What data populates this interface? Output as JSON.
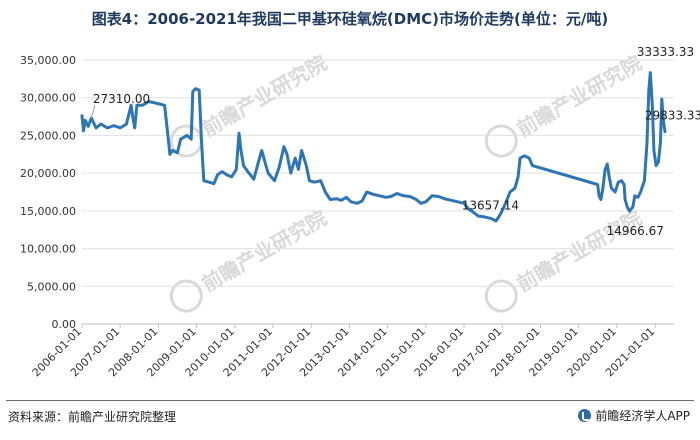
{
  "page": {
    "title": "图表4：2006-2021年我国二甲基环硅氧烷(DMC)市场价走势(单位：元/吨)",
    "source": "资料来源：前瞻产业研究院整理",
    "brand": "前瞻经济学人APP"
  },
  "chart_data": {
    "type": "line",
    "title": "图表4：2006-2021年我国二甲基环硅氧烷(DMC)市场价走势(单位：元/吨)",
    "xlabel": "",
    "ylabel": "",
    "ylim": [
      0,
      35000
    ],
    "yticks": [
      "0.00",
      "5,000.00",
      "10,000.00",
      "15,000.00",
      "20,000.00",
      "25,000.00",
      "30,000.00",
      "35,000.00"
    ],
    "xticks": [
      "2006-01-01",
      "2007-01-01",
      "2008-01-01",
      "2009-01-01",
      "2010-01-01",
      "2011-01-01",
      "2012-01-01",
      "2013-01-01",
      "2014-01-01",
      "2015-01-01",
      "2016-01-01",
      "2017-01-01",
      "2018-01-01",
      "2019-01-01",
      "2020-01-01",
      "2021-01-01"
    ],
    "xlim": [
      "2006-01-01",
      "2021-06-30"
    ],
    "grid": "horizontal",
    "line_color": "#2e75b6",
    "series": [
      {
        "points": [
          [
            "2006-01-01",
            27600
          ],
          [
            "2006-01-15",
            25600
          ],
          [
            "2006-02-01",
            27000
          ],
          [
            "2006-03-01",
            26200
          ],
          [
            "2006-04-01",
            27310
          ],
          [
            "2006-05-15",
            26000
          ],
          [
            "2006-07-01",
            26500
          ],
          [
            "2006-09-01",
            26000
          ],
          [
            "2006-11-01",
            26300
          ],
          [
            "2007-01-01",
            26000
          ],
          [
            "2007-03-01",
            26500
          ],
          [
            "2007-04-15",
            29000
          ],
          [
            "2007-05-01",
            27500
          ],
          [
            "2007-05-20",
            26000
          ],
          [
            "2007-06-10",
            29000
          ],
          [
            "2007-08-01",
            29000
          ],
          [
            "2007-10-01",
            29500
          ],
          [
            "2008-01-01",
            29200
          ],
          [
            "2008-03-01",
            29000
          ],
          [
            "2008-04-01",
            25000
          ],
          [
            "2008-04-20",
            22500
          ],
          [
            "2008-05-15",
            23000
          ],
          [
            "2008-07-01",
            22700
          ],
          [
            "2008-08-01",
            24500
          ],
          [
            "2008-10-01",
            25000
          ],
          [
            "2008-11-10",
            24500
          ],
          [
            "2008-11-25",
            30800
          ],
          [
            "2008-12-20",
            31200
          ],
          [
            "2009-01-25",
            31000
          ],
          [
            "2009-02-15",
            24500
          ],
          [
            "2009-03-10",
            19000
          ],
          [
            "2009-05-01",
            18800
          ],
          [
            "2009-06-15",
            18600
          ],
          [
            "2009-07-20",
            19800
          ],
          [
            "2009-09-01",
            20200
          ],
          [
            "2009-10-15",
            19800
          ],
          [
            "2009-12-01",
            19500
          ],
          [
            "2010-01-15",
            20500
          ],
          [
            "2010-02-10",
            25300
          ],
          [
            "2010-03-01",
            23000
          ],
          [
            "2010-03-25",
            21000
          ],
          [
            "2010-05-15",
            20000
          ],
          [
            "2010-07-01",
            19200
          ],
          [
            "2010-08-15",
            21500
          ],
          [
            "2010-09-15",
            23000
          ],
          [
            "2010-10-15",
            21500
          ],
          [
            "2010-11-15",
            20000
          ],
          [
            "2011-01-15",
            19000
          ],
          [
            "2011-03-01",
            20800
          ],
          [
            "2011-04-15",
            23500
          ],
          [
            "2011-05-15",
            22500
          ],
          [
            "2011-06-20",
            20000
          ],
          [
            "2011-08-01",
            22000
          ],
          [
            "2011-09-01",
            20500
          ],
          [
            "2011-10-01",
            23000
          ],
          [
            "2011-11-15",
            21000
          ],
          [
            "2011-12-15",
            19000
          ],
          [
            "2012-02-01",
            18800
          ],
          [
            "2012-04-01",
            19000
          ],
          [
            "2012-05-15",
            17500
          ],
          [
            "2012-07-01",
            16500
          ],
          [
            "2012-09-01",
            16600
          ],
          [
            "2012-10-15",
            16400
          ],
          [
            "2012-12-01",
            16800
          ],
          [
            "2013-01-15",
            16200
          ],
          [
            "2013-03-15",
            16000
          ],
          [
            "2013-05-01",
            16300
          ],
          [
            "2013-06-15",
            17500
          ],
          [
            "2013-08-15",
            17200
          ],
          [
            "2013-10-15",
            17000
          ],
          [
            "2013-12-15",
            16800
          ],
          [
            "2014-02-01",
            16900
          ],
          [
            "2014-04-01",
            17300
          ],
          [
            "2014-06-01",
            17000
          ],
          [
            "2014-08-01",
            16900
          ],
          [
            "2014-10-01",
            16500
          ],
          [
            "2014-11-15",
            16000
          ],
          [
            "2015-01-01",
            16200
          ],
          [
            "2015-03-01",
            17000
          ],
          [
            "2015-05-01",
            16900
          ],
          [
            "2015-07-01",
            16600
          ],
          [
            "2015-09-01",
            16400
          ],
          [
            "2015-11-01",
            16200
          ],
          [
            "2016-01-01",
            16000
          ],
          [
            "2016-02-15",
            15200
          ],
          [
            "2016-04-01",
            14800
          ],
          [
            "2016-05-15",
            14300
          ],
          [
            "2016-07-15",
            14200
          ],
          [
            "2016-09-15",
            14000
          ],
          [
            "2016-11-01",
            13657
          ],
          [
            "2016-12-15",
            14600
          ],
          [
            "2017-02-01",
            16000
          ],
          [
            "2017-03-15",
            17500
          ],
          [
            "2017-05-01",
            18000
          ],
          [
            "2017-06-01",
            19500
          ],
          [
            "2017-06-20",
            22000
          ],
          [
            "2017-08-01",
            22300
          ],
          [
            "2017-09-15",
            22000
          ],
          [
            "2017-10-15",
            21000
          ],
          [
            "2019-07-01",
            18500
          ],
          [
            "2019-07-15",
            17000
          ],
          [
            "2019-08-01",
            16500
          ],
          [
            "2019-08-20",
            18000
          ],
          [
            "2019-09-10",
            20500
          ],
          [
            "2019-10-01",
            21200
          ],
          [
            "2019-10-20",
            19500
          ],
          [
            "2019-11-10",
            18000
          ],
          [
            "2019-12-15",
            17500
          ],
          [
            "2020-01-15",
            18800
          ],
          [
            "2020-02-15",
            19000
          ],
          [
            "2020-03-10",
            18500
          ],
          [
            "2020-03-20",
            16500
          ],
          [
            "2020-04-10",
            15500
          ],
          [
            "2020-05-01",
            14967
          ],
          [
            "2020-06-01",
            15500
          ],
          [
            "2020-06-20",
            17000
          ],
          [
            "2020-07-20",
            16800
          ],
          [
            "2020-08-15",
            17500
          ],
          [
            "2020-09-20",
            19000
          ],
          [
            "2020-10-15",
            24000
          ],
          [
            "2020-11-01",
            31000
          ],
          [
            "2020-11-15",
            33333
          ],
          [
            "2020-12-05",
            29000
          ],
          [
            "2020-12-20",
            23000
          ],
          [
            "2021-01-10",
            21000
          ],
          [
            "2021-02-01",
            21500
          ],
          [
            "2021-02-20",
            24000
          ],
          [
            "2021-03-05",
            29833
          ],
          [
            "2021-03-20",
            27000
          ],
          [
            "2021-04-05",
            25500
          ]
        ]
      }
    ],
    "annotations": [
      {
        "text": "27310.00",
        "x": "2006-04-01",
        "y": 27310,
        "text_x": "2006-04-15",
        "text_y": 29300,
        "leader": true
      },
      {
        "text": "13657.14",
        "x": "2016-11-01",
        "y": 13657,
        "text_x": "2015-12-10",
        "text_y": 15200,
        "leader": false
      },
      {
        "text": "14966.67",
        "x": "2020-05-01",
        "y": 14967,
        "text_x": "2019-09-25",
        "text_y": 11800,
        "leader": false
      },
      {
        "text": "33333.33",
        "x": "2020-11-15",
        "y": 33333,
        "text_x": "2020-07-10",
        "text_y": 35500,
        "leader": false
      },
      {
        "text": "29833.33",
        "x": "2021-03-05",
        "y": 29833,
        "text_x": "2020-09-25",
        "text_y": 27100,
        "leader": false
      }
    ],
    "watermark": {
      "text": "前瞻产业研究院",
      "color": "#d9d9d9"
    }
  }
}
